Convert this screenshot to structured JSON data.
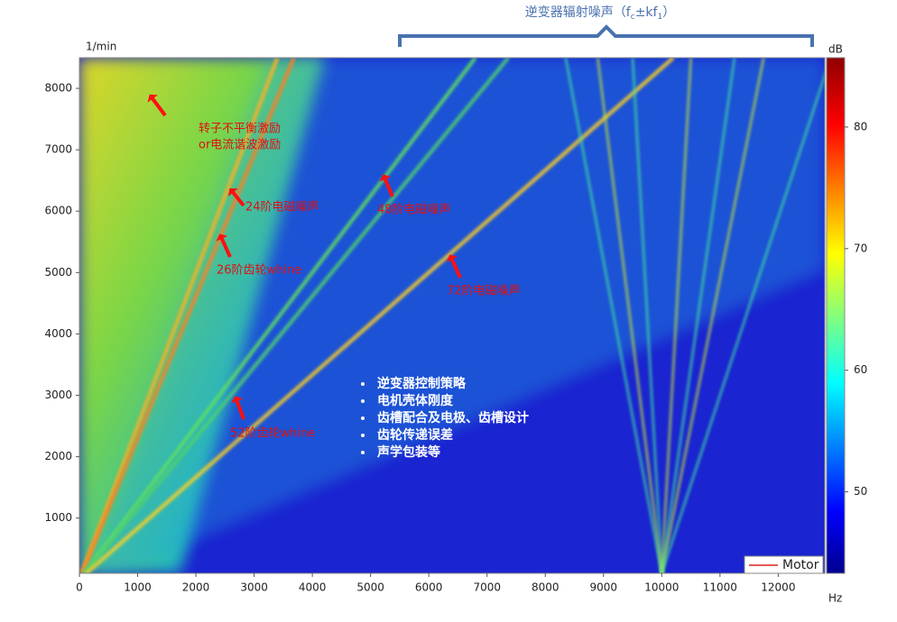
{
  "chart_data": {
    "type": "spectrogram",
    "y_axis_label": "1/min",
    "x_axis_label": "Hz",
    "colorbar_label": "dB",
    "xlim": [
      0,
      12800
    ],
    "xticks": [
      0,
      1000,
      2000,
      3000,
      4000,
      5000,
      6000,
      7000,
      8000,
      9000,
      10000,
      11000,
      12000
    ],
    "ylim": [
      100,
      8500
    ],
    "yticks": [
      1000,
      2000,
      3000,
      4000,
      5000,
      6000,
      7000,
      8000
    ],
    "clim": [
      43.3,
      85.7
    ],
    "cticks": [
      50,
      60,
      70,
      80
    ],
    "order_lines": [
      24,
      26,
      48,
      52,
      72
    ],
    "legend": {
      "name": "Motor",
      "color": "#e02020",
      "corner": "bottom-right"
    },
    "bracket_label": [
      "逆变器辐射噪声（f",
      "c",
      "±kf",
      "1",
      "）"
    ],
    "annotations": [
      "转子不平衡激励",
      "or电流谐波激励",
      "24阶电磁噪声",
      "48阶电磁噪声",
      "26阶齿轮whine",
      "72阶电磁噪声",
      "52阶齿轮whine"
    ],
    "bullets": [
      "逆变器控制策略",
      "电机壳体刚度",
      "齿槽配合及电极、齿槽设计",
      "齿轮传递误差",
      "声学包装等"
    ]
  }
}
